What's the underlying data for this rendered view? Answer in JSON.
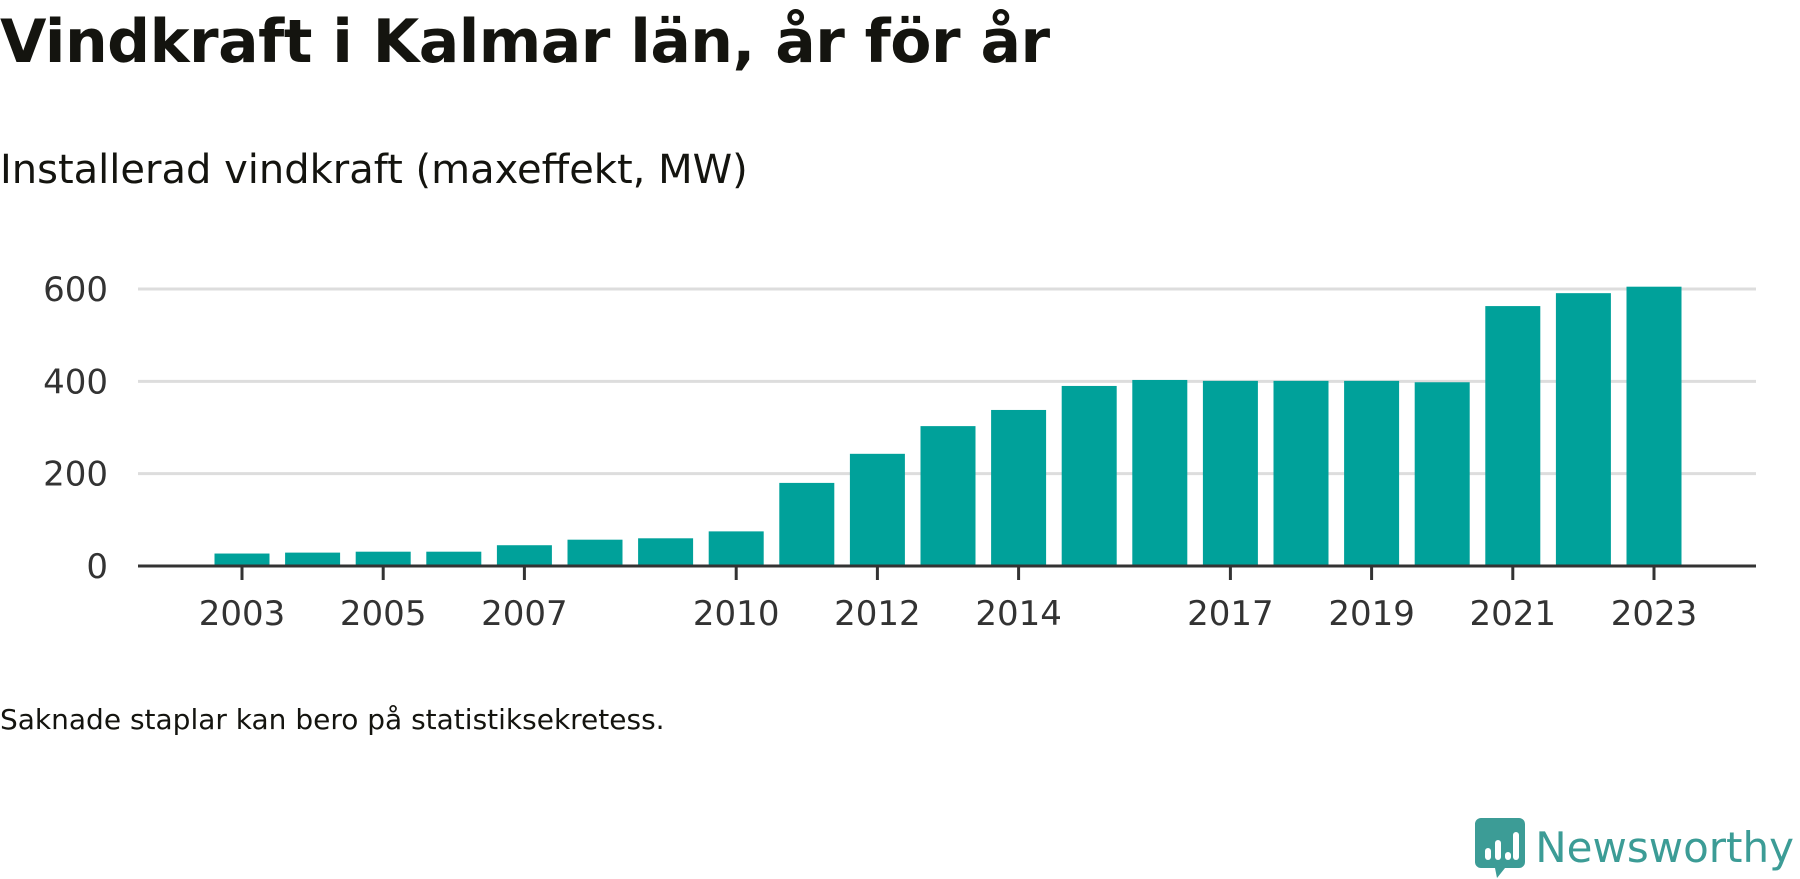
{
  "chart_data": {
    "type": "bar",
    "title": "Vindkraft i Kalmar län, år för år",
    "subtitle": "Installerad vindkraft (maxeffekt, MW)",
    "note": "Saknade staplar kan bero på statistiksekretess.",
    "categories": [
      "2003",
      "2004",
      "2005",
      "2006",
      "2007",
      "2008",
      "2009",
      "2010",
      "2011",
      "2012",
      "2013",
      "2014",
      "2015",
      "2016",
      "2017",
      "2018",
      "2019",
      "2020",
      "2021",
      "2022",
      "2023"
    ],
    "values": [
      27,
      29,
      31,
      31,
      45,
      57,
      60,
      75,
      180,
      243,
      303,
      338,
      390,
      403,
      401,
      401,
      401,
      398,
      563,
      591,
      605
    ],
    "x_tick_labels": [
      "2003",
      "2005",
      "2007",
      "2010",
      "2012",
      "2014",
      "2017",
      "2019",
      "2021",
      "2023"
    ],
    "y_ticks": [
      0,
      200,
      400,
      600
    ],
    "ylim": [
      0,
      600
    ],
    "xlabel": "",
    "ylabel": "",
    "grid": true,
    "bar_color": "#00a19a",
    "grid_color": "#dddddd",
    "axis_color": "#333333"
  },
  "branding": {
    "name": "Newsworthy",
    "logo_icon": "newsworthy-chart-bubble-icon",
    "color": "#3c9c96"
  }
}
